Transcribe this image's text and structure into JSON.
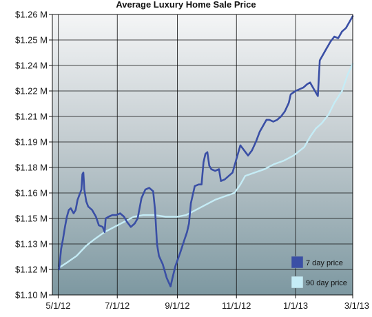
{
  "chart_data": {
    "type": "line",
    "title": "Average Luxury Home Sale Price",
    "xlabel": "",
    "ylabel": "",
    "x_tick_labels": [
      "5/1/12",
      "7/1/12",
      "9/1/12",
      "11/1/12",
      "1/1/13",
      "3/1/13"
    ],
    "x_tick_dates": [
      "2012-05-01",
      "2012-07-01",
      "2012-09-01",
      "2012-11-01",
      "2013-01-01",
      "2013-03-01"
    ],
    "xlim": [
      "2012-04-25",
      "2013-03-01"
    ],
    "y_tick_labels": [
      "$1.10 M",
      "$1.12 M",
      "$1.13 M",
      "$1.15 M",
      "$1.16 M",
      "$1.18 M",
      "$1.19 M",
      "$1.21 M",
      "$1.22 M",
      "$1.24 M",
      "$1.25 M",
      "$1.26 M"
    ],
    "y_tick_values": [
      1.1,
      1.115,
      1.13,
      1.145,
      1.16,
      1.175,
      1.19,
      1.205,
      1.22,
      1.235,
      1.25,
      1.265
    ],
    "ylim": [
      1.1,
      1.265
    ],
    "grid": true,
    "legend_position": "bottom-right",
    "series": [
      {
        "name": "7 day price",
        "color": "#3a4fa5",
        "points": [
          [
            "2012-05-02",
            1.115
          ],
          [
            "2012-05-04",
            1.127
          ],
          [
            "2012-05-06",
            1.133
          ],
          [
            "2012-05-08",
            1.14
          ],
          [
            "2012-05-10",
            1.146
          ],
          [
            "2012-05-12",
            1.15
          ],
          [
            "2012-05-14",
            1.151
          ],
          [
            "2012-05-17",
            1.148
          ],
          [
            "2012-05-19",
            1.15
          ],
          [
            "2012-05-21",
            1.156
          ],
          [
            "2012-05-23",
            1.159
          ],
          [
            "2012-05-25",
            1.162
          ],
          [
            "2012-05-26",
            1.171
          ],
          [
            "2012-05-27",
            1.172
          ],
          [
            "2012-05-28",
            1.162
          ],
          [
            "2012-05-30",
            1.155
          ],
          [
            "2012-06-01",
            1.152
          ],
          [
            "2012-06-05",
            1.15
          ],
          [
            "2012-06-09",
            1.146
          ],
          [
            "2012-06-12",
            1.141
          ],
          [
            "2012-06-16",
            1.14
          ],
          [
            "2012-06-18",
            1.137
          ],
          [
            "2012-06-19",
            1.145
          ],
          [
            "2012-06-22",
            1.146
          ],
          [
            "2012-06-26",
            1.147
          ],
          [
            "2012-06-30",
            1.147
          ],
          [
            "2012-07-04",
            1.148
          ],
          [
            "2012-07-08",
            1.146
          ],
          [
            "2012-07-11",
            1.143
          ],
          [
            "2012-07-15",
            1.14
          ],
          [
            "2012-07-19",
            1.142
          ],
          [
            "2012-07-22",
            1.145
          ],
          [
            "2012-07-26",
            1.157
          ],
          [
            "2012-07-30",
            1.162
          ],
          [
            "2012-08-03",
            1.163
          ],
          [
            "2012-08-07",
            1.161
          ],
          [
            "2012-08-09",
            1.15
          ],
          [
            "2012-08-11",
            1.13
          ],
          [
            "2012-08-13",
            1.123
          ],
          [
            "2012-08-17",
            1.118
          ],
          [
            "2012-08-21",
            1.11
          ],
          [
            "2012-08-25",
            1.105
          ],
          [
            "2012-08-27",
            1.11
          ],
          [
            "2012-08-30",
            1.117
          ],
          [
            "2012-09-04",
            1.125
          ],
          [
            "2012-09-08",
            1.132
          ],
          [
            "2012-09-11",
            1.137
          ],
          [
            "2012-09-13",
            1.142
          ],
          [
            "2012-09-15",
            1.154
          ],
          [
            "2012-09-19",
            1.164
          ],
          [
            "2012-09-23",
            1.165
          ],
          [
            "2012-09-26",
            1.165
          ],
          [
            "2012-09-28",
            1.178
          ],
          [
            "2012-09-30",
            1.183
          ],
          [
            "2012-10-02",
            1.184
          ],
          [
            "2012-10-04",
            1.176
          ],
          [
            "2012-10-06",
            1.174
          ],
          [
            "2012-10-10",
            1.173
          ],
          [
            "2012-10-14",
            1.174
          ],
          [
            "2012-10-16",
            1.167
          ],
          [
            "2012-10-20",
            1.168
          ],
          [
            "2012-10-24",
            1.17
          ],
          [
            "2012-10-28",
            1.172
          ],
          [
            "2012-11-01",
            1.18
          ],
          [
            "2012-11-05",
            1.188
          ],
          [
            "2012-11-09",
            1.185
          ],
          [
            "2012-11-13",
            1.182
          ],
          [
            "2012-11-17",
            1.185
          ],
          [
            "2012-11-21",
            1.19
          ],
          [
            "2012-11-25",
            1.196
          ],
          [
            "2012-11-29",
            1.2
          ],
          [
            "2012-12-02",
            1.203
          ],
          [
            "2012-12-05",
            1.203
          ],
          [
            "2012-12-09",
            1.202
          ],
          [
            "2012-12-13",
            1.203
          ],
          [
            "2012-12-17",
            1.205
          ],
          [
            "2012-12-21",
            1.208
          ],
          [
            "2012-12-25",
            1.213
          ],
          [
            "2012-12-27",
            1.218
          ],
          [
            "2013-01-01",
            1.22
          ],
          [
            "2013-01-05",
            1.221
          ],
          [
            "2013-01-09",
            1.222
          ],
          [
            "2013-01-13",
            1.224
          ],
          [
            "2013-01-16",
            1.225
          ],
          [
            "2013-01-20",
            1.221
          ],
          [
            "2013-01-24",
            1.217
          ],
          [
            "2013-01-26",
            1.238
          ],
          [
            "2013-01-29",
            1.241
          ],
          [
            "2013-02-02",
            1.245
          ],
          [
            "2013-02-06",
            1.249
          ],
          [
            "2013-02-10",
            1.252
          ],
          [
            "2013-02-14",
            1.251
          ],
          [
            "2013-02-18",
            1.255
          ],
          [
            "2013-02-22",
            1.257
          ],
          [
            "2013-02-26",
            1.261
          ],
          [
            "2013-03-01",
            1.264
          ]
        ]
      },
      {
        "name": "90 day price",
        "color": "#c5ecf6",
        "points": [
          [
            "2012-05-02",
            1.116
          ],
          [
            "2012-05-10",
            1.119
          ],
          [
            "2012-05-20",
            1.123
          ],
          [
            "2012-05-30",
            1.129
          ],
          [
            "2012-06-08",
            1.133
          ],
          [
            "2012-06-18",
            1.137
          ],
          [
            "2012-06-28",
            1.14
          ],
          [
            "2012-07-08",
            1.143
          ],
          [
            "2012-07-18",
            1.146
          ],
          [
            "2012-07-28",
            1.147
          ],
          [
            "2012-08-08",
            1.147
          ],
          [
            "2012-08-20",
            1.146
          ],
          [
            "2012-09-01",
            1.146
          ],
          [
            "2012-09-10",
            1.147
          ],
          [
            "2012-09-20",
            1.15
          ],
          [
            "2012-09-30",
            1.153
          ],
          [
            "2012-10-10",
            1.156
          ],
          [
            "2012-10-20",
            1.158
          ],
          [
            "2012-10-30",
            1.16
          ],
          [
            "2012-11-05",
            1.165
          ],
          [
            "2012-11-10",
            1.17
          ],
          [
            "2012-11-20",
            1.172
          ],
          [
            "2012-11-30",
            1.174
          ],
          [
            "2012-12-10",
            1.177
          ],
          [
            "2012-12-20",
            1.179
          ],
          [
            "2012-12-30",
            1.182
          ],
          [
            "2013-01-10",
            1.187
          ],
          [
            "2013-01-16",
            1.193
          ],
          [
            "2013-01-22",
            1.198
          ],
          [
            "2013-01-28",
            1.201
          ],
          [
            "2013-02-04",
            1.206
          ],
          [
            "2013-02-10",
            1.213
          ],
          [
            "2013-02-18",
            1.22
          ],
          [
            "2013-02-24",
            1.23
          ],
          [
            "2013-03-01",
            1.236
          ]
        ]
      }
    ]
  },
  "style": {
    "plot_gradient_top": "#f4f5f6",
    "plot_gradient_mid": "#c3ccd0",
    "plot_gradient_bottom": "#7d98a1",
    "grid_color": "#111111"
  }
}
